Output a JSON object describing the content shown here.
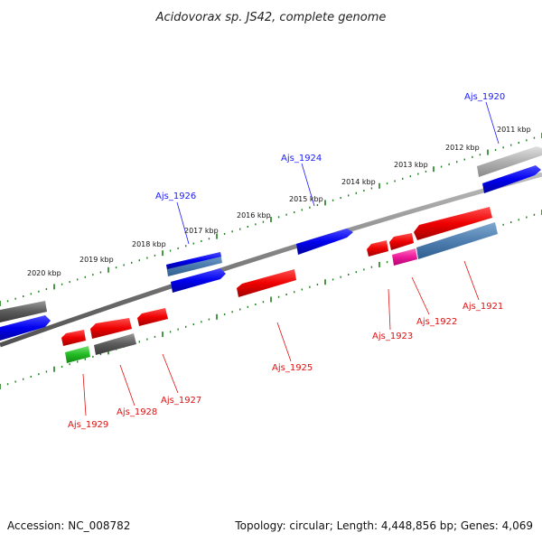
{
  "title": "Acidovorax sp. JS42, complete genome",
  "footer": {
    "accession": "Accession: NC_008782",
    "summary": "Topology: circular; Length: 4,448,856 bp; Genes: 4,069"
  },
  "scale_labels": [
    "2011 kbp",
    "2012 kbp",
    "2013 kbp",
    "2014 kbp",
    "2015 kbp",
    "2016 kbp",
    "2017 kbp",
    "2018 kbp",
    "2019 kbp",
    "2020 kbp"
  ],
  "top_gene_labels": [
    "Ajs_1920",
    "Ajs_1924",
    "Ajs_1926"
  ],
  "bottom_gene_labels": [
    "Ajs_1921",
    "Ajs_1922",
    "Ajs_1923",
    "Ajs_1925",
    "Ajs_1927",
    "Ajs_1928",
    "Ajs_1929"
  ],
  "colors": {
    "backbone": "#7f7f7f",
    "tick_marks": "#1a7f1a",
    "forward_gene": "#0000ee",
    "reverse_gene": "#ee0000",
    "steelblue_gene": "#4f7fb0",
    "magenta_gene": "#ee1a9a",
    "green_gene": "#22bb22",
    "gray_gene": "#5a5a5a",
    "light_gray_gene": "#b0b0b0"
  }
}
